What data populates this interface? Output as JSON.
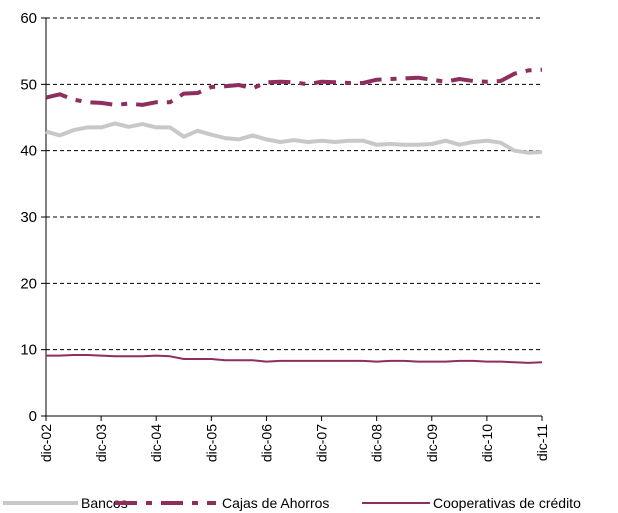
{
  "chart_data": {
    "type": "line",
    "title": "",
    "xlabel": "",
    "ylabel": "",
    "ylim": [
      0,
      60
    ],
    "yticks": [
      "0",
      "10",
      "20",
      "30",
      "40",
      "50",
      "60"
    ],
    "xticks": [
      "dic-02",
      "dic-03",
      "dic-04",
      "dic-05",
      "dic-06",
      "dic-07",
      "dic-08",
      "dic-09",
      "dic-10",
      "dic-11"
    ],
    "grid": "horizontal dashed",
    "legend_position": "bottom",
    "x": [
      "dic-02",
      "mar-03",
      "jun-03",
      "sep-03",
      "dic-03",
      "mar-04",
      "jun-04",
      "sep-04",
      "dic-04",
      "mar-05",
      "jun-05",
      "sep-05",
      "dic-05",
      "mar-06",
      "jun-06",
      "sep-06",
      "dic-06",
      "mar-07",
      "jun-07",
      "sep-07",
      "dic-07",
      "mar-08",
      "jun-08",
      "sep-08",
      "dic-08",
      "mar-09",
      "jun-09",
      "sep-09",
      "dic-09",
      "mar-10",
      "jun-10",
      "sep-10",
      "dic-10",
      "mar-11",
      "jun-11",
      "sep-11",
      "dic-11"
    ],
    "series": [
      {
        "name": "Bancos",
        "color": "#c8c8c8",
        "style": "solid-thick",
        "values": [
          42.9,
          42.3,
          43.1,
          43.5,
          43.5,
          44.1,
          43.6,
          44.0,
          43.5,
          43.5,
          42.1,
          43.0,
          42.4,
          41.9,
          41.7,
          42.3,
          41.7,
          41.3,
          41.6,
          41.3,
          41.5,
          41.3,
          41.5,
          41.5,
          40.9,
          41.0,
          40.9,
          40.9,
          41.0,
          41.5,
          40.9,
          41.3,
          41.5,
          41.2,
          40.0,
          39.7,
          39.8
        ]
      },
      {
        "name": "Cajas de Ahorros",
        "color": "#8e2e5c",
        "style": "dash-dot",
        "values": [
          48.0,
          48.5,
          47.7,
          47.3,
          47.2,
          46.9,
          47.1,
          46.9,
          47.3,
          47.3,
          48.6,
          48.7,
          49.6,
          49.7,
          49.9,
          49.4,
          50.3,
          50.4,
          50.3,
          50.0,
          50.4,
          50.3,
          50.2,
          50.2,
          50.7,
          50.8,
          50.9,
          51.0,
          50.7,
          50.4,
          50.8,
          50.5,
          50.4,
          50.5,
          51.6,
          52.1,
          52.2
        ]
      },
      {
        "name": "Cooperativas de crédito",
        "color": "#8e2e5c",
        "style": "solid-thin",
        "values": [
          9.1,
          9.1,
          9.2,
          9.2,
          9.1,
          9.0,
          9.0,
          9.0,
          9.1,
          9.0,
          8.6,
          8.6,
          8.6,
          8.4,
          8.4,
          8.4,
          8.2,
          8.3,
          8.3,
          8.3,
          8.3,
          8.3,
          8.3,
          8.3,
          8.2,
          8.3,
          8.3,
          8.2,
          8.2,
          8.2,
          8.3,
          8.3,
          8.2,
          8.2,
          8.1,
          8.0,
          8.1
        ]
      }
    ]
  }
}
